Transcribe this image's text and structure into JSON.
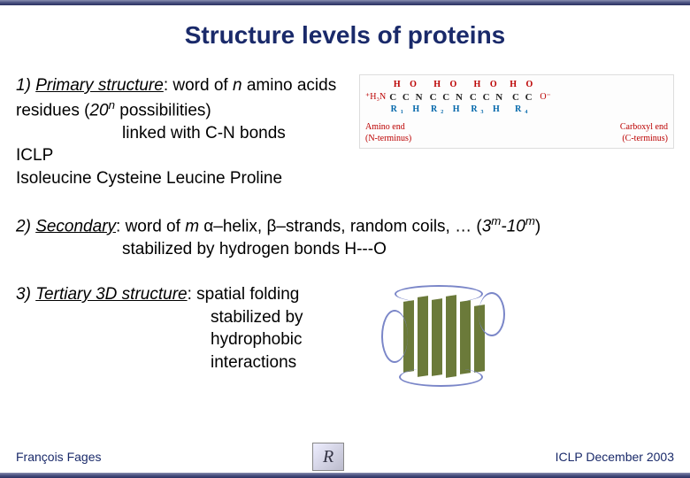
{
  "title": "Structure levels of proteins",
  "section1": {
    "heading_prefix": "1) ",
    "heading_term": "Primary structure",
    "heading_rest": ": word of ",
    "n": "n",
    "heading_rest2": " amino acids residues (",
    "poss_base": "20",
    "poss_exp": "n",
    "heading_rest3": " possibilities)",
    "line2": "linked with C-N bonds",
    "line3": "ICLP",
    "line4": "Isoleucine Cysteine Leucine Proline",
    "chem": {
      "nterm": "⁺H₃N",
      "residues": [
        {
          "top": "H O",
          "mid": "C C N",
          "bot": "R₁   H"
        },
        {
          "top": "H O",
          "mid": "C C N",
          "bot": "R₂   H"
        },
        {
          "top": "H O",
          "mid": "C C N",
          "bot": "R₃   H"
        },
        {
          "top": "H O",
          "mid": "C C",
          "bot": "R₄"
        }
      ],
      "cterm": "O⁻",
      "label_left": "Amino end\n(N-terminus)",
      "label_right": "Carboxyl end\n(C-terminus)"
    }
  },
  "section2": {
    "heading_prefix": "2) ",
    "heading_term": "Secondary",
    "heading_rest": ": word of ",
    "m": "m",
    "alpha": "α–helix, ",
    "beta": "β–strands, random coils, … (",
    "range_base1": "3",
    "range_exp1": "m",
    "range_dash": "-10",
    "range_exp2": "m",
    "range_close": ")",
    "line2": "stabilized by hydrogen bonds H---O"
  },
  "section3": {
    "heading_prefix": "3) ",
    "heading_term": "Tertiary 3D structure",
    "heading_rest": ":  spatial folding",
    "line2": "stabilized by",
    "line3": "hydrophobic",
    "line4": "interactions"
  },
  "footer": {
    "left": "François Fages",
    "right": "ICLP December 2003",
    "logo_text": "R"
  },
  "colors": {
    "title": "#1a2a6a",
    "bar": "#4a5180",
    "sheet": "#6b7a3a",
    "coil": "#7a86c8",
    "red": "#b00000"
  }
}
